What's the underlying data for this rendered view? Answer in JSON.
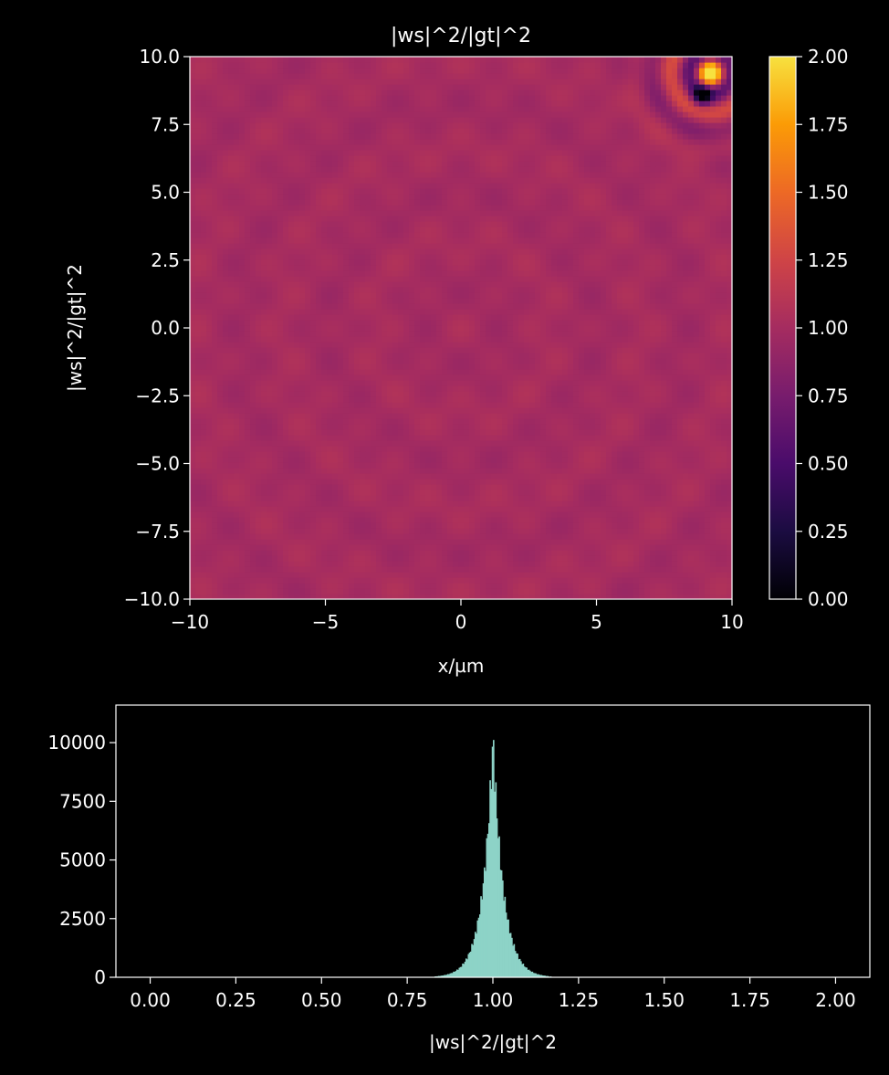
{
  "chart_data": [
    {
      "type": "heatmap",
      "title": "|ws|^2/|gt|^2",
      "xlabel": "x/µm",
      "ylabel": "|ws|^2/|gt|^2",
      "xlim": [
        -10,
        10
      ],
      "ylim": [
        -10,
        10
      ],
      "x_ticks": [
        -10,
        -5,
        0,
        5,
        10
      ],
      "x_tick_labels": [
        "−10",
        "−5",
        "0",
        "5",
        "10"
      ],
      "y_ticks": [
        -10,
        -7.5,
        -5,
        -2.5,
        0,
        2.5,
        5,
        7.5,
        10
      ],
      "y_tick_labels": [
        "−10.0",
        "−7.5",
        "−5.0",
        "−2.5",
        "0.0",
        "2.5",
        "5.0",
        "7.5",
        "10.0"
      ],
      "colormap": "inferno-like",
      "base_value": 1.0,
      "hotspot": {
        "x": 9.2,
        "y": 9.4,
        "peak_value": 2.0,
        "min_value": 0.05
      },
      "colorbar": {
        "range": [
          0,
          2
        ],
        "ticks": [
          0,
          0.25,
          0.5,
          0.75,
          1.0,
          1.25,
          1.5,
          1.75,
          2.0
        ],
        "tick_labels": [
          "0.00",
          "0.25",
          "0.50",
          "0.75",
          "1.00",
          "1.25",
          "1.50",
          "1.75",
          "2.00"
        ]
      }
    },
    {
      "type": "bar",
      "title": "",
      "xlabel": "|ws|^2/|gt|^2",
      "ylabel": "",
      "xlim": [
        -0.1,
        2.1
      ],
      "ylim": [
        0,
        11600
      ],
      "x_ticks": [
        0,
        0.25,
        0.5,
        0.75,
        1.0,
        1.25,
        1.5,
        1.75,
        2.0
      ],
      "x_tick_labels": [
        "0.00",
        "0.25",
        "0.50",
        "0.75",
        "1.00",
        "1.25",
        "1.50",
        "1.75",
        "2.00"
      ],
      "y_ticks": [
        0,
        2500,
        5000,
        7500,
        10000
      ],
      "y_tick_labels": [
        "0",
        "2500",
        "5000",
        "7500",
        "10000"
      ],
      "bar_color": "#8dd3c7",
      "peak_center": 1.0,
      "peak_count": 11100,
      "peak_width": 0.03
    }
  ]
}
